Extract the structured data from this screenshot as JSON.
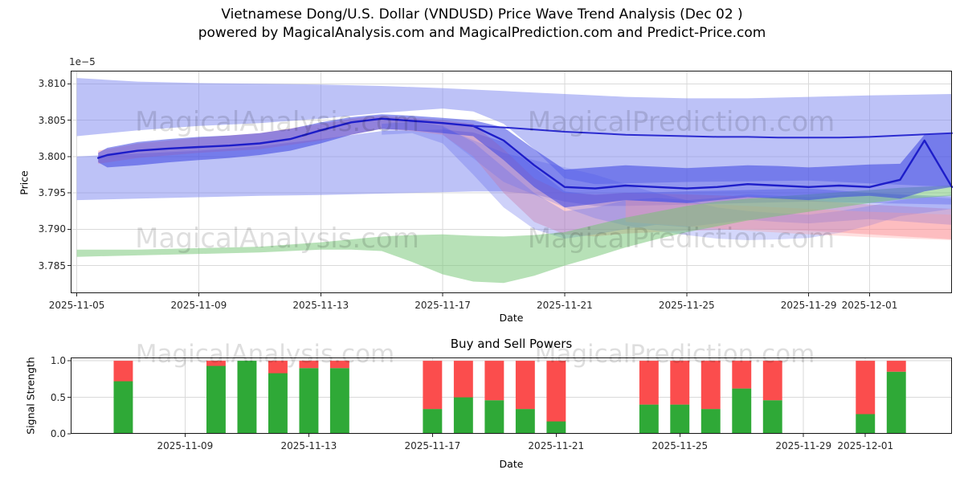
{
  "page": {
    "title_line1": "Vietnamese Dong/U.S. Dollar (VNDUSD) Price Wave Trend Analysis (Dec 02 )",
    "title_line2": "powered by MagicalAnalysis.com and MagicalPrediction.com and Predict-Price.com"
  },
  "watermarks": {
    "left": "MagicalAnalysis.com",
    "right": "MagicalPrediction.com"
  },
  "chart_data": [
    {
      "type": "area",
      "title": "",
      "xlabel": "Date",
      "ylabel": "Price",
      "offset_text": "1e−5",
      "x_base": "2025-11-05",
      "x_domain_days": [
        -0.2,
        28.7
      ],
      "ylim": [
        3.7812,
        3.8118
      ],
      "y_ticks": [
        "3.785",
        "3.790",
        "3.795",
        "3.800",
        "3.805",
        "3.810"
      ],
      "x_ticks": [
        "2025-11-05",
        "2025-11-09",
        "2025-11-13",
        "2025-11-17",
        "2025-11-21",
        "2025-11-25",
        "2025-11-29",
        "2025-12-01"
      ],
      "grid": true,
      "legend": "none",
      "bands": [
        {
          "name": "upper-envelope",
          "color": "rgba(124,134,240,0.50)",
          "x": [
            0,
            2,
            4,
            6,
            8,
            10,
            12,
            13,
            14,
            15,
            16,
            17,
            18,
            20,
            22,
            24,
            26,
            28.7
          ],
          "upper": [
            3.8108,
            3.8103,
            3.8101,
            3.81,
            3.8099,
            3.8097,
            3.8094,
            3.8092,
            3.809,
            3.8088,
            3.8086,
            3.8084,
            3.8082,
            3.808,
            3.808,
            3.8082,
            3.8084,
            3.8086
          ],
          "lower": [
            3.8028,
            3.8036,
            3.8042,
            3.8046,
            3.8052,
            3.806,
            3.8066,
            3.8062,
            3.8045,
            3.801,
            3.797,
            3.7962,
            3.7963,
            3.7965,
            3.7966,
            3.7967,
            3.7963,
            3.7958
          ]
        },
        {
          "name": "lower-envelope",
          "color": "rgba(124,134,240,0.50)",
          "x": [
            0,
            2,
            4,
            6,
            8,
            10,
            12,
            13,
            14,
            15,
            16,
            17,
            18,
            20,
            22,
            24,
            26,
            28.7
          ],
          "upper": [
            3.8,
            3.8004,
            3.8008,
            3.8014,
            3.8024,
            3.8035,
            3.8037,
            3.8033,
            3.802,
            3.7985,
            3.7952,
            3.7947,
            3.795,
            3.7952,
            3.7954,
            3.7956,
            3.795,
            3.7945
          ],
          "lower": [
            3.794,
            3.7942,
            3.7944,
            3.7946,
            3.7947,
            3.7949,
            3.7951,
            3.7952,
            3.7952,
            3.7948,
            3.7938,
            3.7932,
            3.7932,
            3.7934,
            3.7936,
            3.7938,
            3.7936,
            3.7934
          ]
        },
        {
          "name": "pink-forecast",
          "color": "rgba(246,130,140,0.38)",
          "x": [
            0.7,
            2,
            4,
            6,
            8,
            9,
            10,
            11,
            12,
            13,
            14,
            15,
            16,
            17,
            18,
            20,
            22,
            24,
            26,
            28.7
          ],
          "upper": [
            3.8008,
            3.8018,
            3.8026,
            3.8032,
            3.8045,
            3.8052,
            3.8056,
            3.8053,
            3.805,
            3.8045,
            3.801,
            3.797,
            3.795,
            3.7948,
            3.795,
            3.7948,
            3.7945,
            3.794,
            3.7934,
            3.7928
          ],
          "lower": [
            3.799,
            3.7998,
            3.8005,
            3.801,
            3.8022,
            3.803,
            3.8038,
            3.8035,
            3.803,
            3.8,
            3.795,
            3.791,
            3.7893,
            3.789,
            3.7894,
            3.7898,
            3.79,
            3.7898,
            3.7893,
            3.7886
          ]
        },
        {
          "name": "fan-down",
          "color": "rgba(92,102,235,0.30)",
          "x": [
            10,
            11,
            12,
            13,
            14,
            15,
            16,
            17,
            18,
            19,
            20,
            21,
            22,
            23,
            24,
            25,
            26,
            27,
            28.7
          ],
          "upper": [
            3.8045,
            3.8048,
            3.8042,
            3.802,
            3.7985,
            3.795,
            3.7925,
            3.793,
            3.794,
            3.7943,
            3.794,
            3.7943,
            3.7948,
            3.7946,
            3.7944,
            3.7947,
            3.795,
            3.7947,
            3.7942
          ],
          "lower": [
            3.803,
            3.8032,
            3.8018,
            3.7975,
            3.793,
            3.79,
            3.7887,
            3.7893,
            3.79,
            3.7906,
            3.7903,
            3.7908,
            3.7913,
            3.791,
            3.7908,
            3.7911,
            3.7914,
            3.7911,
            3.7906
          ]
        },
        {
          "name": "fan-late",
          "color": "rgba(100,110,240,0.28)",
          "x": [
            12,
            14,
            16,
            17,
            18,
            19,
            20,
            21,
            22,
            23,
            24,
            25,
            26,
            27,
            28.7
          ],
          "upper": [
            3.804,
            3.8005,
            3.7985,
            3.7975,
            3.7962,
            3.795,
            3.794,
            3.793,
            3.7925,
            3.7922,
            3.792,
            3.7925,
            3.7932,
            3.794,
            3.7948
          ],
          "lower": [
            3.803,
            3.7965,
            3.793,
            3.7915,
            3.7905,
            3.7898,
            3.7892,
            3.7887,
            3.7885,
            3.7886,
            3.7888,
            3.7895,
            3.7905,
            3.7918,
            3.7928
          ]
        },
        {
          "name": "pink-right",
          "color": "rgba(255,150,150,0.30)",
          "x": [
            18,
            20,
            22,
            24,
            26,
            28.7
          ],
          "upper": [
            3.794,
            3.7936,
            3.7932,
            3.7928,
            3.7924,
            3.792
          ],
          "lower": [
            3.791,
            3.7904,
            3.7898,
            3.7893,
            3.7889,
            3.7885
          ]
        },
        {
          "name": "green-support",
          "color": "rgba(112,196,112,0.50)",
          "x": [
            0,
            2,
            4,
            6,
            8,
            9,
            10,
            11,
            12,
            13,
            14,
            15,
            16,
            17,
            18,
            19,
            20,
            21,
            22,
            23,
            24,
            25,
            26,
            27,
            28.7
          ],
          "upper": [
            3.7872,
            3.7872,
            3.7874,
            3.7876,
            3.7882,
            3.7886,
            3.789,
            3.7892,
            3.7893,
            3.7891,
            3.789,
            3.7892,
            3.7896,
            3.7906,
            3.7916,
            3.7924,
            3.7932,
            3.7938,
            3.7942,
            3.7945,
            3.7948,
            3.7951,
            3.7954,
            3.7957,
            3.796
          ],
          "lower": [
            3.7862,
            3.7864,
            3.7866,
            3.7868,
            3.7872,
            3.7872,
            3.787,
            3.7855,
            3.7838,
            3.7828,
            3.7826,
            3.7836,
            3.785,
            3.7862,
            3.7875,
            3.7886,
            3.7896,
            3.7904,
            3.7912,
            3.7918,
            3.7924,
            3.793,
            3.7936,
            3.7941,
            3.7946
          ]
        },
        {
          "name": "core-cluster",
          "color": "rgba(58,68,225,0.55)",
          "x": [
            0.7,
            1,
            2,
            3,
            4,
            5,
            6,
            7,
            8,
            9,
            10,
            11,
            12,
            13,
            14,
            15,
            16,
            17,
            18,
            19,
            20,
            21,
            22,
            23,
            24,
            25,
            26,
            27,
            27.8,
            28.7
          ],
          "upper": [
            3.8005,
            3.8012,
            3.802,
            3.8024,
            3.8027,
            3.8029,
            3.8032,
            3.8038,
            3.8047,
            3.8054,
            3.8058,
            3.8056,
            3.8053,
            3.805,
            3.804,
            3.801,
            3.7982,
            3.7985,
            3.7988,
            3.7986,
            3.7984,
            3.7986,
            3.7988,
            3.7987,
            3.7985,
            3.7987,
            3.7989,
            3.799,
            3.803,
            3.8033
          ],
          "lower": [
            3.7992,
            3.7985,
            3.7988,
            3.7992,
            3.7995,
            3.7998,
            3.8002,
            3.8008,
            3.8018,
            3.803,
            3.8038,
            3.8036,
            3.8032,
            3.8028,
            3.7995,
            3.7958,
            3.793,
            3.7935,
            3.794,
            3.7938,
            3.7936,
            3.794,
            3.7944,
            3.7942,
            3.794,
            3.7944,
            3.7946,
            3.7942,
            3.7952,
            3.7958
          ]
        }
      ],
      "lines": [
        {
          "name": "main-trend",
          "color": "#1d1dc9",
          "width": 2.4,
          "x": [
            0.7,
            1,
            2,
            3,
            4,
            5,
            6,
            7,
            8,
            9,
            10,
            11,
            12,
            13,
            14,
            15,
            16,
            17,
            18,
            19,
            20,
            21,
            22,
            23,
            24,
            25,
            26,
            27,
            27.8,
            28.7
          ],
          "values": [
            3.7998,
            3.8002,
            3.8008,
            3.8011,
            3.8013,
            3.8015,
            3.8018,
            3.8024,
            3.8036,
            3.8047,
            3.8052,
            3.8049,
            3.8046,
            3.8042,
            3.8022,
            3.7988,
            3.7958,
            3.7956,
            3.796,
            3.7958,
            3.7956,
            3.7958,
            3.7962,
            3.796,
            3.7958,
            3.796,
            3.7958,
            3.7968,
            3.8022,
            3.7958
          ]
        },
        {
          "name": "upper-trend",
          "color": "#2b2bd0",
          "width": 2,
          "x": [
            13,
            14,
            15,
            16,
            17,
            18,
            19,
            20,
            21,
            22,
            23,
            24,
            25,
            26,
            27,
            28.7
          ],
          "values": [
            3.8042,
            3.804,
            3.8037,
            3.8034,
            3.8032,
            3.803,
            3.8029,
            3.8028,
            3.8027,
            3.8027,
            3.8026,
            3.8026,
            3.8026,
            3.8027,
            3.8029,
            3.8032
          ]
        }
      ]
    },
    {
      "type": "bar",
      "title": "Buy and Sell Powers",
      "xlabel": "Date",
      "ylabel": "Signal Strength",
      "x_base": "2025-11-05",
      "x_domain_days": [
        0.3,
        28.8
      ],
      "ylim": [
        0,
        1.045
      ],
      "y_ticks": [
        "0.0",
        "0.5",
        "1.0"
      ],
      "x_ticks": [
        "2025-11-09",
        "2025-11-13",
        "2025-11-17",
        "2025-11-21",
        "2025-11-25",
        "2025-11-29",
        "2025-12-01"
      ],
      "grid": true,
      "stacked": true,
      "bar_width_days": 0.62,
      "colors": {
        "buy": "#2fa937",
        "sell": "#fb4d4d"
      },
      "bars": {
        "dates": [
          "2025-11-07",
          "2025-11-10",
          "2025-11-11",
          "2025-11-12",
          "2025-11-13",
          "2025-11-14",
          "2025-11-17",
          "2025-11-18",
          "2025-11-19",
          "2025-11-20",
          "2025-11-21",
          "2025-11-24",
          "2025-11-25",
          "2025-11-26",
          "2025-11-27",
          "2025-11-28",
          "2025-12-01",
          "2025-12-02"
        ],
        "buy": [
          0.72,
          0.93,
          1.0,
          0.83,
          0.9,
          0.9,
          0.34,
          0.5,
          0.46,
          0.34,
          0.17,
          0.4,
          0.4,
          0.34,
          0.62,
          0.46,
          0.27,
          0.85
        ],
        "sell": [
          0.28,
          0.07,
          0.0,
          0.17,
          0.1,
          0.1,
          0.66,
          0.5,
          0.54,
          0.66,
          0.83,
          0.6,
          0.6,
          0.66,
          0.38,
          0.54,
          0.73,
          0.15
        ]
      }
    }
  ]
}
